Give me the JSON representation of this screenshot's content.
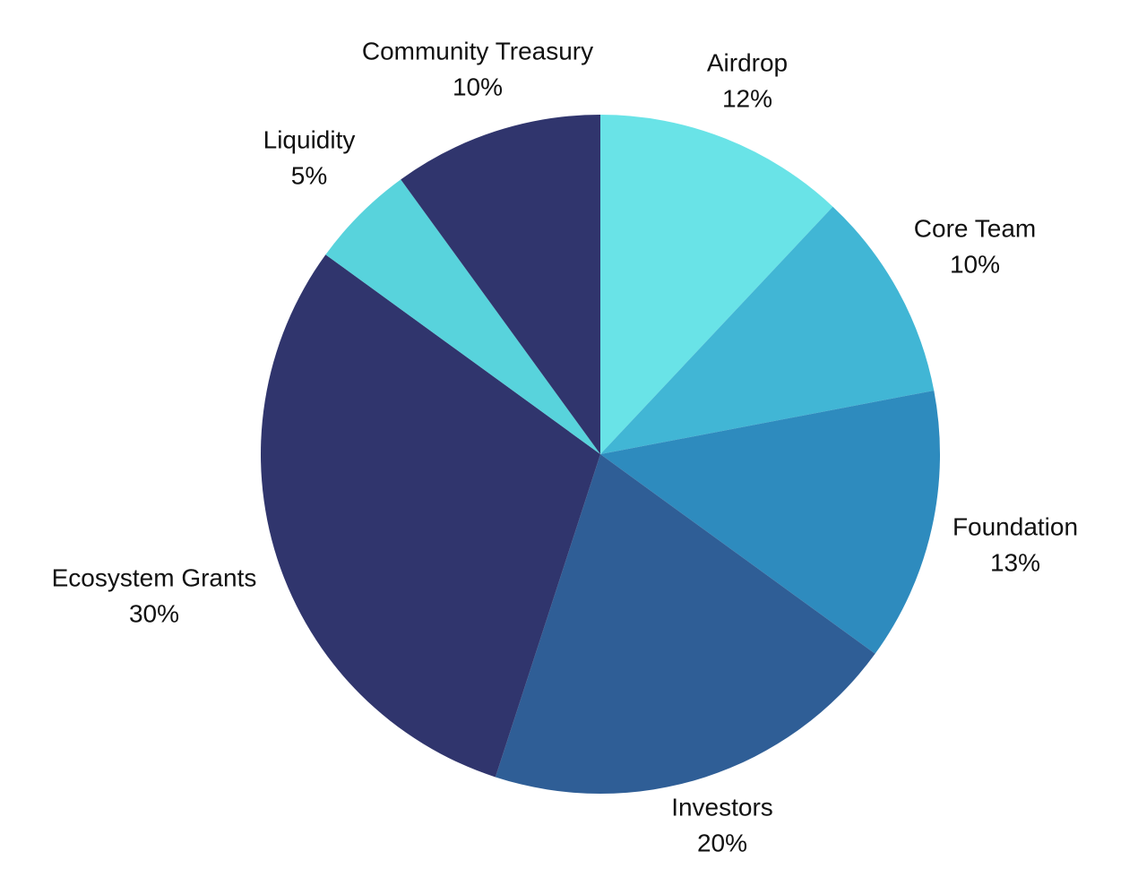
{
  "chart_data": {
    "type": "pie",
    "title": "",
    "start_angle_deg": 0,
    "direction": "clockwise",
    "slices": [
      {
        "name": "Airdrop",
        "value": 12,
        "value_label": "12%",
        "color": "#69E3E7"
      },
      {
        "name": "Core Team",
        "value": 10,
        "value_label": "10%",
        "color": "#41B6D5"
      },
      {
        "name": "Foundation",
        "value": 13,
        "value_label": "13%",
        "color": "#2E8BBE"
      },
      {
        "name": "Investors",
        "value": 20,
        "value_label": "20%",
        "color": "#2F5E96"
      },
      {
        "name": "Ecosystem Grants",
        "value": 30,
        "value_label": "30%",
        "color": "#30356D"
      },
      {
        "name": "Liquidity",
        "value": 5,
        "value_label": "5%",
        "color": "#58D3DC"
      },
      {
        "name": "Community Treasury",
        "value": 10,
        "value_label": "10%",
        "color": "#30356D"
      }
    ]
  }
}
